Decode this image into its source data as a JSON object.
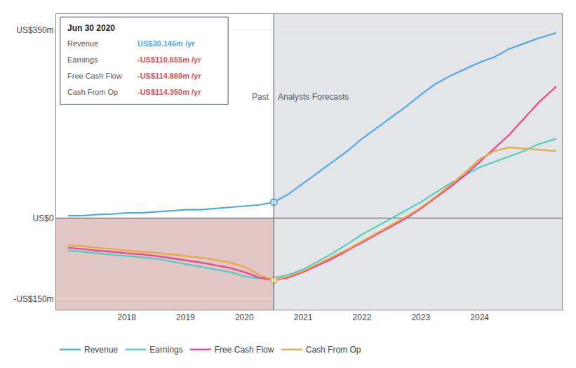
{
  "chart_data": {
    "type": "line",
    "x": [
      2017.0,
      2017.25,
      2017.5,
      2017.75,
      2018.0,
      2018.25,
      2018.5,
      2018.75,
      2019.0,
      2019.25,
      2019.5,
      2019.75,
      2020.0,
      2020.25,
      2020.5,
      2020.75,
      2021.0,
      2021.25,
      2021.5,
      2021.75,
      2022.0,
      2022.25,
      2022.5,
      2022.75,
      2023.0,
      2023.25,
      2023.5,
      2023.75,
      2024.0,
      2024.25,
      2024.5,
      2024.75,
      2025.0,
      2025.3
    ],
    "series": [
      {
        "name": "Revenue",
        "color": "#4fa8e8",
        "values": [
          5,
          5,
          7,
          8,
          10,
          10,
          12,
          14,
          16,
          16,
          18,
          20,
          22,
          25,
          30,
          45,
          65,
          85,
          105,
          125,
          148,
          168,
          188,
          208,
          230,
          250,
          265,
          278,
          290,
          300,
          315,
          325,
          335,
          345
        ]
      },
      {
        "name": "Earnings",
        "color": "#4ecdc4",
        "values": [
          -60,
          -62,
          -65,
          -68,
          -70,
          -72,
          -75,
          -80,
          -85,
          -90,
          -95,
          -100,
          -108,
          -112,
          -111,
          -105,
          -95,
          -80,
          -65,
          -48,
          -30,
          -15,
          0,
          15,
          30,
          48,
          65,
          80,
          95,
          105,
          115,
          125,
          138,
          148
        ]
      },
      {
        "name": "Free Cash Flow",
        "color": "#e84393",
        "values": [
          -55,
          -57,
          -60,
          -62,
          -65,
          -67,
          -70,
          -74,
          -78,
          -82,
          -87,
          -92,
          -100,
          -110,
          -115,
          -110,
          -100,
          -88,
          -75,
          -60,
          -45,
          -30,
          -15,
          0,
          18,
          38,
          58,
          80,
          105,
          130,
          155,
          185,
          215,
          245
        ]
      },
      {
        "name": "Cash From Op",
        "color": "#e8a840",
        "values": [
          -50,
          -52,
          -55,
          -57,
          -60,
          -62,
          -64,
          -67,
          -70,
          -73,
          -77,
          -82,
          -90,
          -105,
          -115,
          -108,
          -98,
          -85,
          -72,
          -58,
          -43,
          -28,
          -13,
          3,
          20,
          40,
          62,
          85,
          110,
          125,
          132,
          130,
          128,
          125
        ]
      }
    ],
    "xlim": [
      2016.8,
      2025.4
    ],
    "xticks": [
      2018,
      2019,
      2020,
      2021,
      2022,
      2023,
      2024
    ],
    "ylim": [
      -170,
      380
    ],
    "yticks": [
      {
        "value": -150,
        "label": "-US$150m"
      },
      {
        "value": 0,
        "label": "US$0"
      },
      {
        "value": 350,
        "label": "US$350m"
      }
    ],
    "grid": "y",
    "legend": "lower left",
    "divider": {
      "x": 2020.5,
      "past_label": "Past",
      "forecast_label": "Analysts Forecasts",
      "past_color": "#8b1a1a",
      "forecast_color": "#1a2a4a"
    },
    "highlights": [
      {
        "series": "Revenue",
        "x": 2020.5,
        "y": 30
      },
      {
        "series": "Cash From Op",
        "x": 2020.5,
        "y": -115
      }
    ],
    "tooltip": {
      "title": "Jun 30 2020",
      "rows": [
        {
          "label": "Revenue",
          "text": "US$30.146m /yr",
          "color": "#4fa8e8"
        },
        {
          "label": "Earnings",
          "text": "-US$110.655m /yr",
          "color": "#e05050"
        },
        {
          "label": "Free Cash Flow",
          "text": "-US$114.869m /yr",
          "color": "#e05050"
        },
        {
          "label": "Cash From Op",
          "text": "-US$114.350m /yr",
          "color": "#e05050"
        }
      ]
    }
  }
}
